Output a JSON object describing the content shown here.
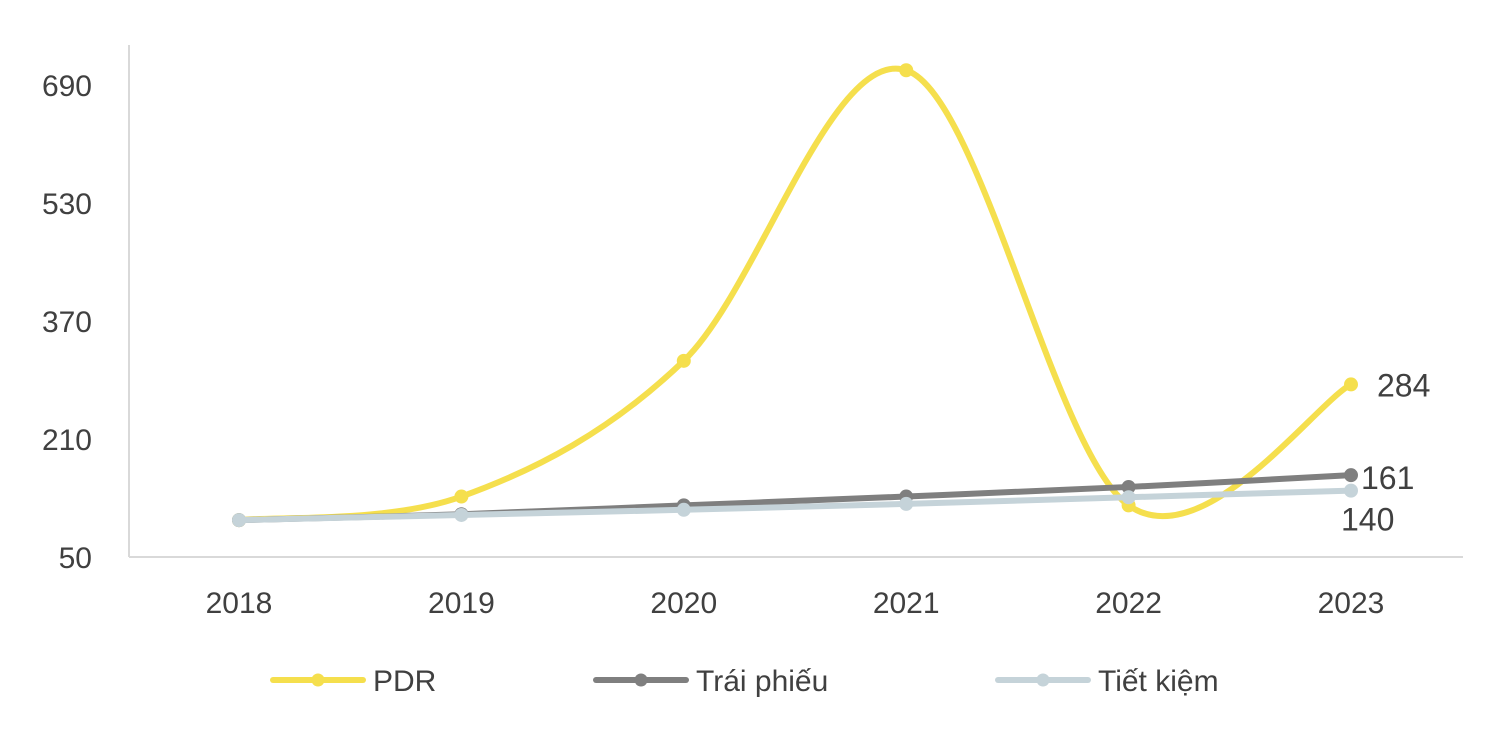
{
  "chart_data": {
    "type": "line",
    "smooth": true,
    "title": "",
    "xlabel": "",
    "ylabel": "",
    "categories": [
      "2018",
      "2019",
      "2020",
      "2021",
      "2022",
      "2023"
    ],
    "y_ticks": [
      50,
      210,
      370,
      530,
      690
    ],
    "ylim": [
      50,
      740
    ],
    "grid": false,
    "legend_position": "bottom",
    "series": [
      {
        "name": "PDR",
        "color": "#F5DF4D",
        "values": [
          100,
          132,
          316,
          710,
          120,
          284
        ],
        "end_label": "284"
      },
      {
        "name": "Trái phiếu",
        "color": "#7F7F7F",
        "values": [
          100,
          108,
          120,
          132,
          145,
          161
        ],
        "end_label": "161"
      },
      {
        "name": "Tiết kiệm",
        "color": "#C5D3D9",
        "values": [
          100,
          107,
          114,
          122,
          131,
          140
        ],
        "end_label": "140"
      }
    ]
  }
}
